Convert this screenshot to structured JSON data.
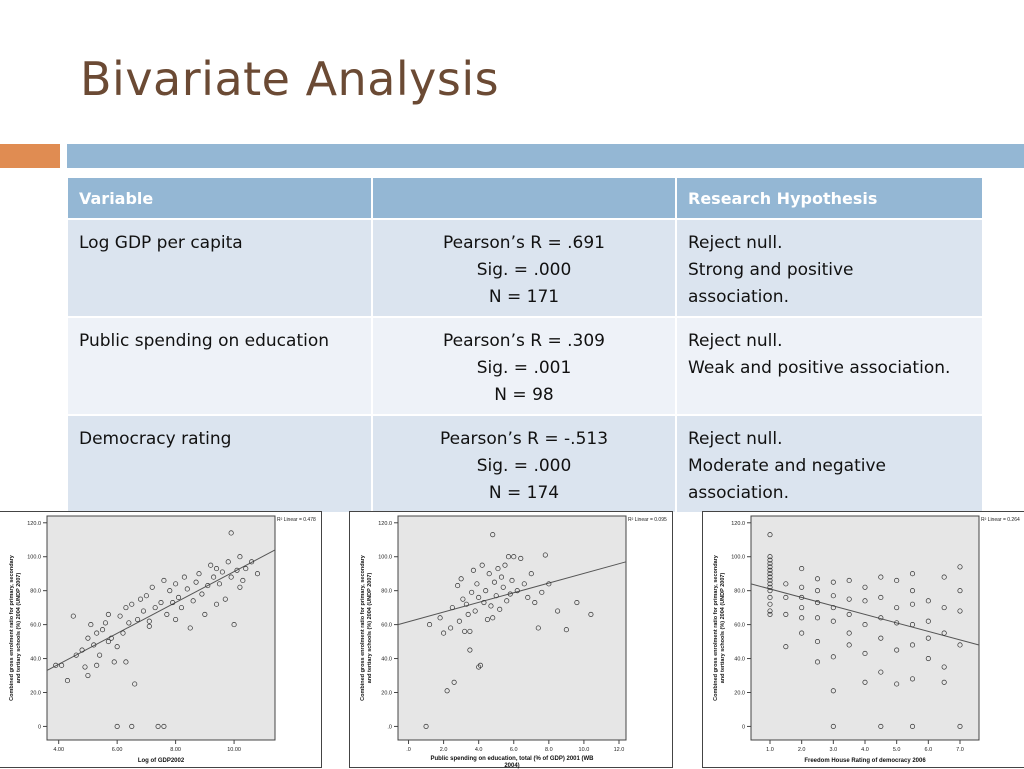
{
  "slide": {
    "title": "Bivariate Analysis",
    "colors": {
      "title": "#6b4a34",
      "accent_orange": "#e08c52",
      "accent_blue": "#94b7d4",
      "row_dark": "#dbe4ef",
      "row_light": "#eef2f8"
    }
  },
  "table": {
    "headers": [
      "Variable",
      "",
      "Research Hypothesis"
    ],
    "rows": [
      {
        "variable": "Log GDP per capita",
        "stats": [
          "Pearson’s R = .691",
          "Sig. = .000",
          "N = 171"
        ],
        "hypothesis": [
          "Reject null.",
          "Strong and positive",
          "association."
        ]
      },
      {
        "variable": "Public spending on education",
        "stats": [
          "Pearson’s R = .309",
          "Sig. = .001",
          "N = 98"
        ],
        "hypothesis": [
          "Reject null.",
          "Weak and positive association."
        ]
      },
      {
        "variable": "Democracy rating",
        "stats": [
          "Pearson’s R = -.513",
          "Sig. = .000",
          "N = 174"
        ],
        "hypothesis": [
          "Reject null.",
          "Moderate and negative",
          "association."
        ]
      }
    ]
  },
  "chart_data": [
    {
      "type": "scatter",
      "xlabel": "Log of GDP2002",
      "ylabel": "Combined gross enrolment ratio for primary, secondary and tertiary schools (%) 2004 (UNDP 2007)",
      "annotation": "R² Linear = 0.478",
      "xticks": [
        "4.00",
        "6.00",
        "8.00",
        "10.00"
      ],
      "yticks": [
        "0",
        "20.0",
        "40.0",
        "60.0",
        "80.0",
        "100.0",
        "120.0"
      ],
      "xlim": [
        3.6,
        11.4
      ],
      "ylim": [
        -8,
        124
      ],
      "fit": [
        [
          3.6,
          33
        ],
        [
          11.4,
          104
        ]
      ],
      "points": [
        [
          3.9,
          36
        ],
        [
          4.1,
          36
        ],
        [
          4.3,
          27
        ],
        [
          4.6,
          42
        ],
        [
          4.8,
          45
        ],
        [
          4.9,
          35
        ],
        [
          5.0,
          30
        ],
        [
          5.0,
          52
        ],
        [
          5.1,
          60
        ],
        [
          5.2,
          48
        ],
        [
          5.3,
          55
        ],
        [
          5.4,
          42
        ],
        [
          5.5,
          57
        ],
        [
          5.6,
          61
        ],
        [
          5.7,
          66
        ],
        [
          5.8,
          52
        ],
        [
          5.9,
          38
        ],
        [
          6.0,
          47
        ],
        [
          6.1,
          65
        ],
        [
          6.2,
          55
        ],
        [
          6.3,
          70
        ],
        [
          6.4,
          61
        ],
        [
          6.5,
          72
        ],
        [
          6.6,
          25
        ],
        [
          6.7,
          63
        ],
        [
          6.8,
          75
        ],
        [
          6.9,
          68
        ],
        [
          7.0,
          77
        ],
        [
          7.1,
          59
        ],
        [
          7.2,
          82
        ],
        [
          7.3,
          70
        ],
        [
          7.4,
          0
        ],
        [
          7.5,
          73
        ],
        [
          7.6,
          86
        ],
        [
          7.7,
          66
        ],
        [
          7.8,
          80
        ],
        [
          7.9,
          73
        ],
        [
          8.0,
          84
        ],
        [
          8.1,
          76
        ],
        [
          8.2,
          70
        ],
        [
          8.3,
          88
        ],
        [
          8.4,
          81
        ],
        [
          8.5,
          58
        ],
        [
          8.6,
          74
        ],
        [
          8.7,
          85
        ],
        [
          8.8,
          90
        ],
        [
          8.9,
          78
        ],
        [
          9.0,
          66
        ],
        [
          9.1,
          83
        ],
        [
          9.2,
          95
        ],
        [
          9.3,
          88
        ],
        [
          9.4,
          72
        ],
        [
          9.5,
          84
        ],
        [
          9.6,
          91
        ],
        [
          9.7,
          75
        ],
        [
          9.8,
          97
        ],
        [
          9.9,
          88
        ],
        [
          10.0,
          60
        ],
        [
          10.1,
          92
        ],
        [
          10.2,
          100
        ],
        [
          10.3,
          86
        ],
        [
          10.4,
          93
        ],
        [
          10.6,
          97
        ],
        [
          10.8,
          90
        ],
        [
          6.0,
          0
        ],
        [
          6.5,
          0
        ],
        [
          7.6,
          0
        ],
        [
          4.5,
          65
        ],
        [
          5.3,
          36
        ],
        [
          6.3,
          38
        ],
        [
          9.9,
          114
        ],
        [
          8.0,
          63
        ],
        [
          7.1,
          62
        ],
        [
          5.7,
          50
        ],
        [
          9.4,
          93
        ],
        [
          10.2,
          82
        ]
      ]
    },
    {
      "type": "scatter",
      "xlabel": "Public spending on education, total (% of GDP) 2001 (WB 2004)",
      "ylabel": "Combined gross enrolment ratio for primary, secondary and tertiary schools (%) 2004 (UNDP 2007)",
      "annotation": "R² Linear = 0.095",
      "xticks": [
        ".0",
        "2.0",
        "4.0",
        "6.0",
        "8.0",
        "10.0",
        "12.0"
      ],
      "yticks": [
        ".0",
        "20.0",
        "40.0",
        "60.0",
        "80.0",
        "100.0",
        "120.0"
      ],
      "xlim": [
        -0.6,
        12.4
      ],
      "ylim": [
        -8,
        124
      ],
      "fit": [
        [
          -0.6,
          60
        ],
        [
          12.4,
          97
        ]
      ],
      "points": [
        [
          1.0,
          0
        ],
        [
          1.2,
          60
        ],
        [
          1.8,
          64
        ],
        [
          2.0,
          55
        ],
        [
          2.2,
          21
        ],
        [
          2.4,
          58
        ],
        [
          2.5,
          70
        ],
        [
          2.6,
          26
        ],
        [
          2.8,
          83
        ],
        [
          2.9,
          62
        ],
        [
          3.0,
          87
        ],
        [
          3.1,
          75
        ],
        [
          3.2,
          56
        ],
        [
          3.3,
          72
        ],
        [
          3.4,
          66
        ],
        [
          3.5,
          45
        ],
        [
          3.6,
          79
        ],
        [
          3.7,
          92
        ],
        [
          3.8,
          68
        ],
        [
          3.9,
          84
        ],
        [
          4.0,
          76
        ],
        [
          4.1,
          36
        ],
        [
          4.2,
          95
        ],
        [
          4.3,
          73
        ],
        [
          4.4,
          80
        ],
        [
          4.5,
          63
        ],
        [
          4.6,
          90
        ],
        [
          4.7,
          71
        ],
        [
          4.8,
          113
        ],
        [
          4.9,
          85
        ],
        [
          5.0,
          77
        ],
        [
          5.1,
          93
        ],
        [
          5.2,
          69
        ],
        [
          5.3,
          88
        ],
        [
          5.4,
          82
        ],
        [
          5.5,
          95
        ],
        [
          5.6,
          74
        ],
        [
          5.7,
          100
        ],
        [
          5.8,
          78
        ],
        [
          5.9,
          86
        ],
        [
          6.0,
          100
        ],
        [
          6.2,
          80
        ],
        [
          6.4,
          99
        ],
        [
          6.6,
          84
        ],
        [
          6.8,
          76
        ],
        [
          7.0,
          90
        ],
        [
          7.2,
          73
        ],
        [
          7.4,
          58
        ],
        [
          7.6,
          79
        ],
        [
          7.8,
          101
        ],
        [
          8.0,
          84
        ],
        [
          8.5,
          68
        ],
        [
          9.0,
          57
        ],
        [
          9.6,
          73
        ],
        [
          10.4,
          66
        ],
        [
          4.0,
          35
        ],
        [
          3.5,
          56
        ],
        [
          4.8,
          64
        ]
      ]
    },
    {
      "type": "scatter",
      "xlabel": "Freedom House Rating of democracy 2006",
      "ylabel": "Combined gross enrolment ratio for primary, secondary and tertiary schools (%) 2004 (UNDP 2007)",
      "annotation": "R² Linear = 0.264",
      "xticks": [
        "1.0",
        "2.0",
        "3.0",
        "4.0",
        "5.0",
        "6.0",
        "7.0"
      ],
      "yticks": [
        "0",
        "20.0",
        "40.0",
        "60.0",
        "80.0",
        "100.0",
        "120.0"
      ],
      "xlim": [
        0.4,
        7.6
      ],
      "ylim": [
        -8,
        124
      ],
      "fit": [
        [
          0.4,
          84
        ],
        [
          7.6,
          48
        ]
      ],
      "points": [
        [
          1.0,
          100
        ],
        [
          1.0,
          98
        ],
        [
          1.0,
          96
        ],
        [
          1.0,
          94
        ],
        [
          1.0,
          92
        ],
        [
          1.0,
          90
        ],
        [
          1.0,
          88
        ],
        [
          1.0,
          86
        ],
        [
          1.0,
          84
        ],
        [
          1.0,
          82
        ],
        [
          1.0,
          80
        ],
        [
          1.0,
          76
        ],
        [
          1.0,
          72
        ],
        [
          1.0,
          68
        ],
        [
          1.0,
          66
        ],
        [
          1.0,
          113
        ],
        [
          1.5,
          84
        ],
        [
          1.5,
          76
        ],
        [
          1.5,
          66
        ],
        [
          1.5,
          47
        ],
        [
          2.0,
          93
        ],
        [
          2.0,
          82
        ],
        [
          2.0,
          76
        ],
        [
          2.0,
          70
        ],
        [
          2.0,
          64
        ],
        [
          2.0,
          55
        ],
        [
          2.5,
          87
        ],
        [
          2.5,
          80
        ],
        [
          2.5,
          73
        ],
        [
          2.5,
          64
        ],
        [
          2.5,
          50
        ],
        [
          2.5,
          38
        ],
        [
          3.0,
          85
        ],
        [
          3.0,
          77
        ],
        [
          3.0,
          70
        ],
        [
          3.0,
          62
        ],
        [
          3.0,
          41
        ],
        [
          3.0,
          21
        ],
        [
          3.0,
          0
        ],
        [
          3.5,
          86
        ],
        [
          3.5,
          75
        ],
        [
          3.5,
          66
        ],
        [
          3.5,
          55
        ],
        [
          3.5,
          48
        ],
        [
          4.0,
          82
        ],
        [
          4.0,
          74
        ],
        [
          4.0,
          60
        ],
        [
          4.0,
          43
        ],
        [
          4.0,
          26
        ],
        [
          4.5,
          88
        ],
        [
          4.5,
          76
        ],
        [
          4.5,
          64
        ],
        [
          4.5,
          52
        ],
        [
          4.5,
          32
        ],
        [
          4.5,
          0
        ],
        [
          5.0,
          86
        ],
        [
          5.0,
          70
        ],
        [
          5.0,
          61
        ],
        [
          5.0,
          45
        ],
        [
          5.0,
          25
        ],
        [
          5.5,
          90
        ],
        [
          5.5,
          80
        ],
        [
          5.5,
          72
        ],
        [
          5.5,
          60
        ],
        [
          5.5,
          48
        ],
        [
          5.5,
          28
        ],
        [
          5.5,
          0
        ],
        [
          6.0,
          74
        ],
        [
          6.0,
          62
        ],
        [
          6.0,
          52
        ],
        [
          6.0,
          40
        ],
        [
          6.5,
          88
        ],
        [
          6.5,
          70
        ],
        [
          6.5,
          55
        ],
        [
          6.5,
          35
        ],
        [
          6.5,
          26
        ],
        [
          7.0,
          94
        ],
        [
          7.0,
          80
        ],
        [
          7.0,
          68
        ],
        [
          7.0,
          48
        ],
        [
          7.0,
          0
        ]
      ]
    }
  ]
}
